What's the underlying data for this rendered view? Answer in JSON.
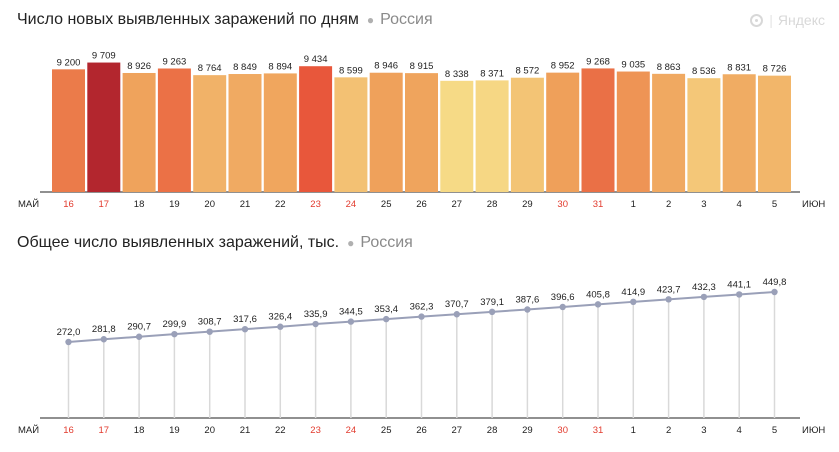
{
  "brand": {
    "name": "Яндекс"
  },
  "chart_data": [
    {
      "type": "bar",
      "title": "Число новых выявленных заражений по дням",
      "region": "Россия",
      "month_start": "МАЙ",
      "month_end": "ИЮН",
      "categories": [
        "16",
        "17",
        "18",
        "19",
        "20",
        "21",
        "22",
        "23",
        "24",
        "25",
        "26",
        "27",
        "28",
        "29",
        "30",
        "31",
        "1",
        "2",
        "3",
        "4",
        "5"
      ],
      "weekend_categories": [
        "16",
        "17",
        "23",
        "24",
        "30",
        "31"
      ],
      "values": [
        9200,
        9709,
        8926,
        9263,
        8764,
        8849,
        8894,
        9434,
        8599,
        8946,
        8915,
        8338,
        8371,
        8572,
        8952,
        9268,
        9035,
        8863,
        8536,
        8831,
        8726
      ],
      "value_labels": [
        "9 200",
        "9 709",
        "8 926",
        "9 263",
        "8 764",
        "8 849",
        "8 894",
        "9 434",
        "8 599",
        "8 946",
        "8 915",
        "8 338",
        "8 371",
        "8 572",
        "8 952",
        "9 268",
        "9 035",
        "8 863",
        "8 536",
        "8 831",
        "8 726"
      ],
      "ylim": [
        0,
        10500
      ],
      "colors": {
        "low": "#f6da86",
        "mid": "#efa05a",
        "high": "#e8573b",
        "highest": "#b3262e",
        "weekend_tick": "#e23b2e"
      }
    },
    {
      "type": "line",
      "title": "Общее число выявленных заражений, тыс.",
      "region": "Россия",
      "month_start": "МАЙ",
      "month_end": "ИЮН",
      "categories": [
        "16",
        "17",
        "18",
        "19",
        "20",
        "21",
        "22",
        "23",
        "24",
        "25",
        "26",
        "27",
        "28",
        "29",
        "30",
        "31",
        "1",
        "2",
        "3",
        "4",
        "5"
      ],
      "weekend_categories": [
        "16",
        "17",
        "23",
        "24",
        "30",
        "31"
      ],
      "values": [
        272.0,
        281.8,
        290.7,
        299.9,
        308.7,
        317.6,
        326.4,
        335.9,
        344.5,
        353.4,
        362.3,
        370.7,
        379.1,
        387.6,
        396.6,
        405.8,
        414.9,
        423.7,
        432.3,
        441.1,
        449.8
      ],
      "value_labels": [
        "272,0",
        "281,8",
        "290,7",
        "299,9",
        "308,7",
        "317,6",
        "326,4",
        "335,9",
        "344,5",
        "353,4",
        "362,3",
        "370,7",
        "379,1",
        "387,6",
        "396,6",
        "405,8",
        "414,9",
        "423,7",
        "432,3",
        "441,1",
        "449,8"
      ],
      "colors": {
        "line": "#9aa0b8",
        "point": "#9aa0b8",
        "stem": "#d9d9d9"
      }
    }
  ]
}
